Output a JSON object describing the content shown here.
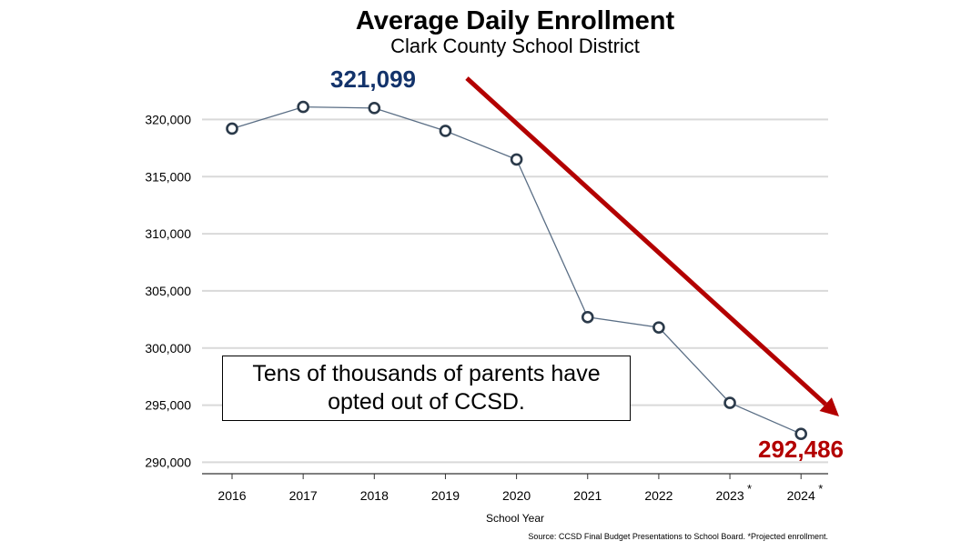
{
  "chart_data": {
    "type": "line",
    "title": "Average Daily Enrollment",
    "subtitle": "Clark County School District",
    "xlabel": "School Year",
    "ylabel": "",
    "categories": [
      "2016",
      "2017",
      "2018",
      "2019",
      "2020",
      "2021",
      "2022",
      "2023",
      "2024"
    ],
    "category_markers": [
      "",
      "",
      "",
      "",
      "",
      "",
      "",
      "*",
      "*"
    ],
    "values": [
      319200,
      321099,
      321000,
      319000,
      316500,
      302700,
      301800,
      295200,
      292486
    ],
    "ylim": [
      289000,
      322500
    ],
    "yticks": [
      290000,
      295000,
      300000,
      305000,
      310000,
      315000,
      320000
    ],
    "ytick_labels": [
      "290,000",
      "295,000",
      "300,000",
      "305,000",
      "310,000",
      "315,000",
      "320,000"
    ],
    "grid": "horizontal",
    "annotations": {
      "peak_label": "321,099",
      "end_label": "292,486",
      "note": "Tens of thousands of parents have opted out of CCSD.",
      "source": "Source: CCSD Final Budget Presentations to School Board. *Projected enrollment."
    },
    "colors": {
      "line": "#5a6e85",
      "marker_fill": "#ffffff",
      "marker_stroke": "#2b3a4a",
      "peak_label": "#13336b",
      "arrow_and_end_label": "#b30000",
      "grid": "#d9d9d9"
    }
  }
}
